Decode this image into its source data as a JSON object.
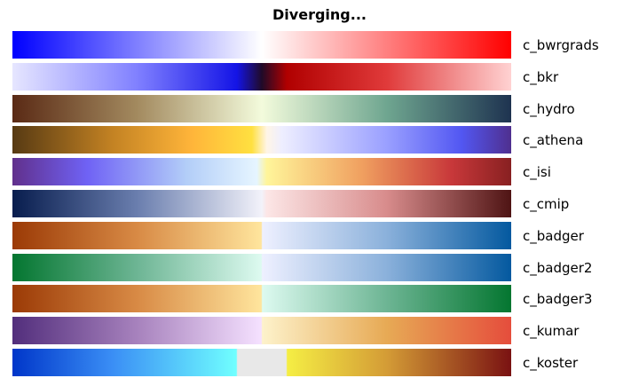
{
  "title": "Diverging...",
  "colormaps": [
    {
      "name": "c_bwrgrads",
      "stops": [
        {
          "p": 0,
          "c": "#0000ff"
        },
        {
          "p": 50,
          "c": "#ffffff"
        },
        {
          "p": 100,
          "c": "#ff0000"
        }
      ]
    },
    {
      "name": "c_bkr",
      "stops": [
        {
          "p": 0,
          "c": "#e6e6ff"
        },
        {
          "p": 25,
          "c": "#8080ff"
        },
        {
          "p": 45,
          "c": "#1414e6"
        },
        {
          "p": 50,
          "c": "#200a28"
        },
        {
          "p": 55,
          "c": "#b00000"
        },
        {
          "p": 75,
          "c": "#e03a3a"
        },
        {
          "p": 100,
          "c": "#ffd2d2"
        }
      ]
    },
    {
      "name": "c_hydro",
      "stops": [
        {
          "p": 0,
          "c": "#5a2a15"
        },
        {
          "p": 25,
          "c": "#a38a5f"
        },
        {
          "p": 50,
          "c": "#f3fbdc"
        },
        {
          "p": 75,
          "c": "#6fa690"
        },
        {
          "p": 100,
          "c": "#1e3350"
        }
      ]
    },
    {
      "name": "c_athena",
      "stops": [
        {
          "p": 0,
          "c": "#573a13"
        },
        {
          "p": 20,
          "c": "#c38223"
        },
        {
          "p": 36,
          "c": "#ffb53a"
        },
        {
          "p": 48,
          "c": "#ffe040"
        },
        {
          "p": 51,
          "c": "#fff5e6"
        },
        {
          "p": 54,
          "c": "#eeeeff"
        },
        {
          "p": 75,
          "c": "#9aa0ff"
        },
        {
          "p": 90,
          "c": "#5257f2"
        },
        {
          "p": 100,
          "c": "#4f2f8f"
        }
      ]
    },
    {
      "name": "c_isi",
      "stops": [
        {
          "p": 0,
          "c": "#61308c"
        },
        {
          "p": 15,
          "c": "#6f62f5"
        },
        {
          "p": 35,
          "c": "#b3cef8"
        },
        {
          "p": 49,
          "c": "#e6f5ff"
        },
        {
          "p": 51,
          "c": "#fff59a"
        },
        {
          "p": 70,
          "c": "#f0a060"
        },
        {
          "p": 88,
          "c": "#c8383a"
        },
        {
          "p": 100,
          "c": "#882021"
        }
      ]
    },
    {
      "name": "c_cmip",
      "stops": [
        {
          "p": 0,
          "c": "#081d4e"
        },
        {
          "p": 25,
          "c": "#6a7eae"
        },
        {
          "p": 50,
          "c": "#f2f2fa"
        },
        {
          "p": 51,
          "c": "#fce6e6"
        },
        {
          "p": 75,
          "c": "#d88c8c"
        },
        {
          "p": 100,
          "c": "#4f1414"
        }
      ]
    },
    {
      "name": "c_badger",
      "stops": [
        {
          "p": 0,
          "c": "#9b3a06"
        },
        {
          "p": 25,
          "c": "#d88a45"
        },
        {
          "p": 49.9,
          "c": "#ffe59d"
        },
        {
          "p": 50.1,
          "c": "#eef0ff"
        },
        {
          "p": 75,
          "c": "#8bb1db"
        },
        {
          "p": 100,
          "c": "#04599f"
        }
      ]
    },
    {
      "name": "c_badger2",
      "stops": [
        {
          "p": 0,
          "c": "#047630"
        },
        {
          "p": 25,
          "c": "#6db594"
        },
        {
          "p": 49.9,
          "c": "#ddfaf0"
        },
        {
          "p": 50.1,
          "c": "#eef0ff"
        },
        {
          "p": 75,
          "c": "#8bb1db"
        },
        {
          "p": 100,
          "c": "#04599f"
        }
      ]
    },
    {
      "name": "c_badger3",
      "stops": [
        {
          "p": 0,
          "c": "#9b3a06"
        },
        {
          "p": 25,
          "c": "#d88a45"
        },
        {
          "p": 49.9,
          "c": "#ffe59d"
        },
        {
          "p": 50.1,
          "c": "#ddfaf0"
        },
        {
          "p": 75,
          "c": "#6db594"
        },
        {
          "p": 100,
          "c": "#047630"
        }
      ]
    },
    {
      "name": "c_kumar",
      "stops": [
        {
          "p": 0,
          "c": "#522e7c"
        },
        {
          "p": 25,
          "c": "#a782bd"
        },
        {
          "p": 49.9,
          "c": "#f5e1ff"
        },
        {
          "p": 50.1,
          "c": "#fdf2cb"
        },
        {
          "p": 75,
          "c": "#e7aa55"
        },
        {
          "p": 100,
          "c": "#e54d3c"
        }
      ]
    },
    {
      "name": "c_koster",
      "stops": [
        {
          "p": 0,
          "c": "#0036c9"
        },
        {
          "p": 20,
          "c": "#3a8ef5"
        },
        {
          "p": 44.9,
          "c": "#70ffff"
        },
        {
          "p": 45.1,
          "c": "#e8e8e8"
        },
        {
          "p": 54.9,
          "c": "#e8e8e8"
        },
        {
          "p": 55.1,
          "c": "#f5ee44"
        },
        {
          "p": 75,
          "c": "#d49c36"
        },
        {
          "p": 100,
          "c": "#7a1212"
        }
      ]
    }
  ]
}
